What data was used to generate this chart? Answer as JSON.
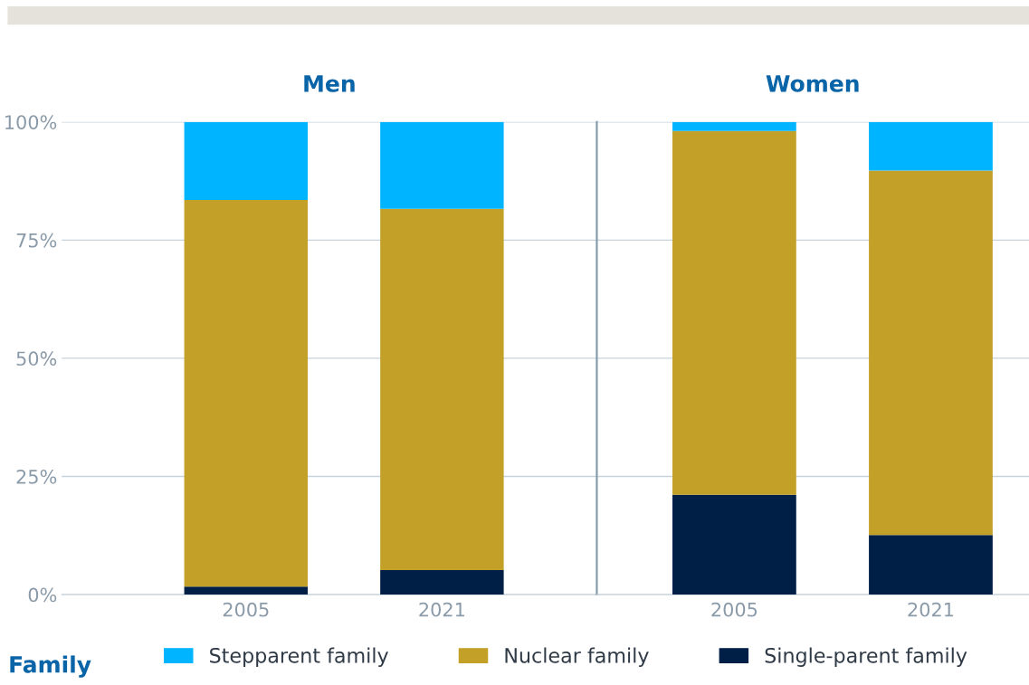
{
  "chart_data": [
    {
      "type": "bar",
      "title": "Men",
      "categories": [
        "2005",
        "2021"
      ],
      "stacked": true,
      "series": [
        {
          "name": "Single-parent family",
          "color": "#001f47",
          "values": [
            1.7,
            5.2
          ]
        },
        {
          "name": "Nuclear family",
          "color": "#c3a028",
          "values": [
            81.8,
            76.4
          ]
        },
        {
          "name": "Stepparent family",
          "color": "#00b4ff",
          "values": [
            16.5,
            18.4
          ]
        }
      ],
      "ylim": [
        0,
        100
      ],
      "yticks": [
        {
          "value": 0,
          "label": "0%"
        },
        {
          "value": 25,
          "label": "25%"
        },
        {
          "value": 50,
          "label": "50%"
        },
        {
          "value": 75,
          "label": "75%"
        },
        {
          "value": 100,
          "label": "100%"
        }
      ],
      "grid": "y",
      "legend": "bottom",
      "legend_title": "Family"
    },
    {
      "type": "bar",
      "title": "Women",
      "categories": [
        "2005",
        "2021"
      ],
      "stacked": true,
      "series": [
        {
          "color": "#001f47",
          "values": [
            21.1,
            12.6
          ]
        },
        {
          "color": "#c3a028",
          "values": [
            77.0,
            77.1
          ]
        },
        {
          "color": "#00b4ff",
          "values": [
            1.9,
            10.3
          ]
        }
      ],
      "ylim": [
        0,
        100
      ],
      "yticks": [
        0,
        25,
        50,
        75,
        100
      ],
      "grid": "y",
      "tick_labels": "x"
    }
  ]
}
